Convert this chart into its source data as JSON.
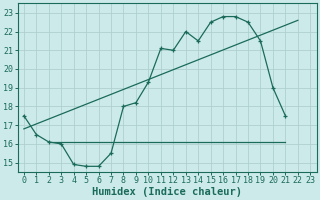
{
  "xlabel": "Humidex (Indice chaleur)",
  "bg_color": "#cdeaea",
  "grid_color": "#b0d0d0",
  "line_color": "#1a6b5a",
  "xlim": [
    -0.5,
    23.5
  ],
  "ylim": [
    14.5,
    23.5
  ],
  "xticks": [
    0,
    1,
    2,
    3,
    4,
    5,
    6,
    7,
    8,
    9,
    10,
    11,
    12,
    13,
    14,
    15,
    16,
    17,
    18,
    19,
    20,
    21,
    22,
    23
  ],
  "yticks": [
    15,
    16,
    17,
    18,
    19,
    20,
    21,
    22,
    23
  ],
  "line1_x": [
    0,
    1,
    2,
    3,
    4,
    5,
    6,
    7,
    8,
    9,
    10,
    11,
    12,
    13,
    14,
    15,
    16,
    17,
    18,
    19,
    20,
    21
  ],
  "line1_y": [
    17.5,
    16.5,
    16.1,
    16.0,
    14.9,
    14.8,
    14.8,
    15.5,
    18.0,
    18.2,
    19.3,
    21.1,
    21.0,
    22.0,
    21.5,
    22.5,
    22.8,
    22.8,
    22.5,
    21.5,
    19.0,
    17.5
  ],
  "line2_x": [
    0,
    22
  ],
  "line2_y": [
    16.8,
    22.6
  ],
  "line3_x": [
    2,
    19,
    21
  ],
  "line3_y": [
    16.1,
    16.1,
    16.1
  ],
  "tick_fontsize": 6,
  "label_fontsize": 7.5
}
